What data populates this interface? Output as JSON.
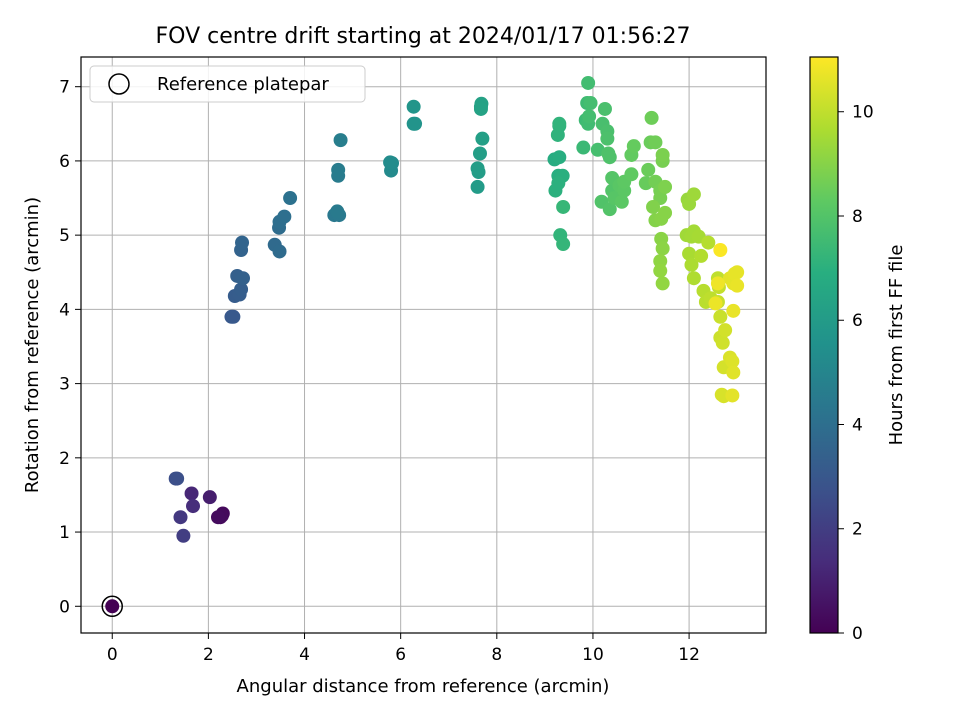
{
  "chart_data": {
    "type": "scatter",
    "title": "FOV centre drift starting at 2024/01/17 01:56:27",
    "xlabel": "Angular distance from reference (arcmin)",
    "ylabel": "Rotation from reference (arcmin)",
    "xlim": [
      -0.65,
      13.6
    ],
    "ylim": [
      -0.36,
      7.4
    ],
    "xticks": [
      "0",
      "2",
      "4",
      "6",
      "8",
      "10",
      "12"
    ],
    "yticks": [
      "0",
      "1",
      "2",
      "3",
      "4",
      "5",
      "6",
      "7"
    ],
    "grid": true,
    "legend": {
      "placement": "top-left",
      "entries": [
        "Reference platepar"
      ]
    },
    "colorbar": {
      "label": "Hours from first FF file",
      "colormap": "viridis",
      "range": [
        0,
        11.05
      ],
      "ticks": [
        "0",
        "2",
        "4",
        "6",
        "8",
        "10"
      ]
    },
    "reference_point": {
      "x": 0,
      "y": 0
    },
    "points": [
      {
        "x": 0,
        "y": 0,
        "c": 0
      },
      {
        "x": 2.25,
        "y": 1.2,
        "c": 0.2
      },
      {
        "x": 2.3,
        "y": 1.25,
        "c": 0.25
      },
      {
        "x": 2.28,
        "y": 1.22,
        "c": 0.3
      },
      {
        "x": 2.2,
        "y": 1.2,
        "c": 0.35
      },
      {
        "x": 2.03,
        "y": 1.47,
        "c": 0.9
      },
      {
        "x": 1.65,
        "y": 1.52,
        "c": 1.2
      },
      {
        "x": 1.68,
        "y": 1.35,
        "c": 1.4
      },
      {
        "x": 1.42,
        "y": 1.2,
        "c": 1.8
      },
      {
        "x": 1.48,
        "y": 0.95,
        "c": 2.0
      },
      {
        "x": 1.32,
        "y": 1.72,
        "c": 2.6
      },
      {
        "x": 1.35,
        "y": 1.72,
        "c": 2.7
      },
      {
        "x": 2.48,
        "y": 3.9,
        "c": 3.0
      },
      {
        "x": 2.52,
        "y": 3.9,
        "c": 3.05
      },
      {
        "x": 2.55,
        "y": 4.18,
        "c": 3.2
      },
      {
        "x": 2.65,
        "y": 4.2,
        "c": 3.25
      },
      {
        "x": 2.68,
        "y": 4.27,
        "c": 3.3
      },
      {
        "x": 2.6,
        "y": 4.45,
        "c": 3.35
      },
      {
        "x": 2.72,
        "y": 4.42,
        "c": 3.4
      },
      {
        "x": 2.68,
        "y": 4.8,
        "c": 3.5
      },
      {
        "x": 2.7,
        "y": 4.9,
        "c": 3.55
      },
      {
        "x": 3.38,
        "y": 4.87,
        "c": 3.8
      },
      {
        "x": 3.48,
        "y": 4.78,
        "c": 3.85
      },
      {
        "x": 3.47,
        "y": 5.1,
        "c": 3.9
      },
      {
        "x": 3.48,
        "y": 5.18,
        "c": 3.95
      },
      {
        "x": 3.58,
        "y": 5.25,
        "c": 4.0
      },
      {
        "x": 3.7,
        "y": 5.5,
        "c": 4.1
      },
      {
        "x": 4.62,
        "y": 5.27,
        "c": 4.4
      },
      {
        "x": 4.72,
        "y": 5.27,
        "c": 4.45
      },
      {
        "x": 4.68,
        "y": 5.32,
        "c": 4.5
      },
      {
        "x": 4.7,
        "y": 5.8,
        "c": 4.55
      },
      {
        "x": 4.7,
        "y": 5.88,
        "c": 4.6
      },
      {
        "x": 4.75,
        "y": 6.28,
        "c": 4.7
      },
      {
        "x": 5.8,
        "y": 5.87,
        "c": 5.2
      },
      {
        "x": 5.82,
        "y": 5.97,
        "c": 5.25
      },
      {
        "x": 5.78,
        "y": 5.98,
        "c": 5.3
      },
      {
        "x": 6.27,
        "y": 6.5,
        "c": 5.6
      },
      {
        "x": 6.3,
        "y": 6.5,
        "c": 5.65
      },
      {
        "x": 6.27,
        "y": 6.73,
        "c": 5.7
      },
      {
        "x": 7.6,
        "y": 5.65,
        "c": 6.0
      },
      {
        "x": 7.62,
        "y": 5.85,
        "c": 6.05
      },
      {
        "x": 7.6,
        "y": 5.9,
        "c": 6.1
      },
      {
        "x": 7.65,
        "y": 6.1,
        "c": 6.15
      },
      {
        "x": 7.7,
        "y": 6.3,
        "c": 6.2
      },
      {
        "x": 7.67,
        "y": 6.73,
        "c": 6.25
      },
      {
        "x": 7.68,
        "y": 6.77,
        "c": 6.3
      },
      {
        "x": 7.67,
        "y": 6.7,
        "c": 6.35
      },
      {
        "x": 9.2,
        "y": 6.02,
        "c": 6.8
      },
      {
        "x": 9.3,
        "y": 6.05,
        "c": 6.85
      },
      {
        "x": 9.28,
        "y": 5.8,
        "c": 6.9
      },
      {
        "x": 9.37,
        "y": 5.8,
        "c": 6.95
      },
      {
        "x": 9.22,
        "y": 5.6,
        "c": 7.0
      },
      {
        "x": 9.28,
        "y": 5.7,
        "c": 7.0
      },
      {
        "x": 9.3,
        "y": 6.47,
        "c": 7.05
      },
      {
        "x": 9.27,
        "y": 6.35,
        "c": 7.1
      },
      {
        "x": 9.3,
        "y": 6.5,
        "c": 7.15
      },
      {
        "x": 9.32,
        "y": 5.0,
        "c": 7.2
      },
      {
        "x": 9.38,
        "y": 4.88,
        "c": 7.25
      },
      {
        "x": 9.38,
        "y": 5.38,
        "c": 7.3
      },
      {
        "x": 9.8,
        "y": 6.18,
        "c": 7.4
      },
      {
        "x": 9.85,
        "y": 6.55,
        "c": 7.45
      },
      {
        "x": 9.88,
        "y": 6.78,
        "c": 7.5
      },
      {
        "x": 9.9,
        "y": 6.5,
        "c": 7.55
      },
      {
        "x": 9.9,
        "y": 7.05,
        "c": 7.6
      },
      {
        "x": 9.92,
        "y": 6.6,
        "c": 7.65
      },
      {
        "x": 9.95,
        "y": 6.78,
        "c": 7.65
      },
      {
        "x": 10.1,
        "y": 6.15,
        "c": 7.7
      },
      {
        "x": 10.2,
        "y": 6.5,
        "c": 7.75
      },
      {
        "x": 10.25,
        "y": 6.7,
        "c": 7.8
      },
      {
        "x": 10.3,
        "y": 6.4,
        "c": 7.8
      },
      {
        "x": 10.3,
        "y": 6.3,
        "c": 7.85
      },
      {
        "x": 10.32,
        "y": 6.1,
        "c": 7.9
      },
      {
        "x": 10.35,
        "y": 6.05,
        "c": 7.9
      },
      {
        "x": 10.18,
        "y": 5.45,
        "c": 7.95
      },
      {
        "x": 10.35,
        "y": 5.35,
        "c": 8.0
      },
      {
        "x": 10.4,
        "y": 5.6,
        "c": 8.0
      },
      {
        "x": 10.4,
        "y": 5.77,
        "c": 8.05
      },
      {
        "x": 10.45,
        "y": 5.5,
        "c": 8.1
      },
      {
        "x": 10.55,
        "y": 5.67,
        "c": 8.15
      },
      {
        "x": 10.6,
        "y": 5.45,
        "c": 8.2
      },
      {
        "x": 10.65,
        "y": 5.6,
        "c": 8.2
      },
      {
        "x": 10.65,
        "y": 5.72,
        "c": 8.25
      },
      {
        "x": 10.8,
        "y": 5.82,
        "c": 8.3
      },
      {
        "x": 10.8,
        "y": 6.08,
        "c": 8.35
      },
      {
        "x": 10.85,
        "y": 6.2,
        "c": 8.4
      },
      {
        "x": 11.1,
        "y": 5.7,
        "c": 8.45
      },
      {
        "x": 11.15,
        "y": 5.88,
        "c": 8.5
      },
      {
        "x": 11.2,
        "y": 6.25,
        "c": 8.5
      },
      {
        "x": 11.22,
        "y": 6.58,
        "c": 8.55
      },
      {
        "x": 11.3,
        "y": 6.25,
        "c": 8.6
      },
      {
        "x": 11.3,
        "y": 5.72,
        "c": 8.65
      },
      {
        "x": 11.4,
        "y": 5.6,
        "c": 8.7
      },
      {
        "x": 11.4,
        "y": 5.5,
        "c": 8.75
      },
      {
        "x": 11.45,
        "y": 6.0,
        "c": 8.75
      },
      {
        "x": 11.45,
        "y": 6.08,
        "c": 8.8
      },
      {
        "x": 11.5,
        "y": 5.65,
        "c": 8.85
      },
      {
        "x": 11.25,
        "y": 5.38,
        "c": 8.9
      },
      {
        "x": 11.3,
        "y": 5.2,
        "c": 8.95
      },
      {
        "x": 11.42,
        "y": 5.22,
        "c": 9.0
      },
      {
        "x": 11.5,
        "y": 5.3,
        "c": 9.0
      },
      {
        "x": 11.42,
        "y": 4.95,
        "c": 9.05
      },
      {
        "x": 11.45,
        "y": 4.82,
        "c": 9.1
      },
      {
        "x": 11.4,
        "y": 4.65,
        "c": 9.15
      },
      {
        "x": 11.4,
        "y": 4.52,
        "c": 9.2
      },
      {
        "x": 11.45,
        "y": 4.35,
        "c": 9.2
      },
      {
        "x": 11.97,
        "y": 5.48,
        "c": 9.3
      },
      {
        "x": 12.0,
        "y": 5.42,
        "c": 9.35
      },
      {
        "x": 12.1,
        "y": 5.55,
        "c": 9.4
      },
      {
        "x": 11.95,
        "y": 5.0,
        "c": 9.45
      },
      {
        "x": 12.05,
        "y": 4.98,
        "c": 9.5
      },
      {
        "x": 12.1,
        "y": 5.05,
        "c": 9.5
      },
      {
        "x": 12.2,
        "y": 4.98,
        "c": 9.55
      },
      {
        "x": 12.0,
        "y": 4.75,
        "c": 9.6
      },
      {
        "x": 12.05,
        "y": 4.6,
        "c": 9.65
      },
      {
        "x": 12.1,
        "y": 4.42,
        "c": 9.7
      },
      {
        "x": 12.25,
        "y": 4.72,
        "c": 9.75
      },
      {
        "x": 12.4,
        "y": 4.9,
        "c": 9.8
      },
      {
        "x": 12.3,
        "y": 4.25,
        "c": 9.85
      },
      {
        "x": 12.35,
        "y": 4.1,
        "c": 9.9
      },
      {
        "x": 12.45,
        "y": 4.15,
        "c": 9.95
      },
      {
        "x": 12.6,
        "y": 4.42,
        "c": 10.0
      },
      {
        "x": 12.62,
        "y": 4.3,
        "c": 10.05
      },
      {
        "x": 12.6,
        "y": 4.1,
        "c": 10.1
      },
      {
        "x": 12.65,
        "y": 3.9,
        "c": 10.15
      },
      {
        "x": 12.65,
        "y": 3.62,
        "c": 10.2
      },
      {
        "x": 12.7,
        "y": 3.55,
        "c": 10.25
      },
      {
        "x": 12.75,
        "y": 3.72,
        "c": 10.3
      },
      {
        "x": 12.72,
        "y": 3.22,
        "c": 10.35
      },
      {
        "x": 12.68,
        "y": 2.85,
        "c": 10.4
      },
      {
        "x": 12.72,
        "y": 2.83,
        "c": 10.4
      },
      {
        "x": 12.85,
        "y": 3.35,
        "c": 10.45
      },
      {
        "x": 12.9,
        "y": 3.3,
        "c": 10.5
      },
      {
        "x": 12.92,
        "y": 3.15,
        "c": 10.55
      },
      {
        "x": 12.9,
        "y": 2.84,
        "c": 10.6
      },
      {
        "x": 12.85,
        "y": 4.42,
        "c": 10.6
      },
      {
        "x": 12.92,
        "y": 4.35,
        "c": 10.62
      },
      {
        "x": 12.95,
        "y": 4.48,
        "c": 10.65
      },
      {
        "x": 13.0,
        "y": 4.5,
        "c": 10.65
      },
      {
        "x": 13.0,
        "y": 4.32,
        "c": 10.7
      },
      {
        "x": 12.92,
        "y": 3.98,
        "c": 10.7
      },
      {
        "x": 12.55,
        "y": 4.08,
        "c": 10.75
      },
      {
        "x": 12.6,
        "y": 4.35,
        "c": 10.8
      },
      {
        "x": 12.65,
        "y": 4.8,
        "c": 11.0
      }
    ]
  }
}
